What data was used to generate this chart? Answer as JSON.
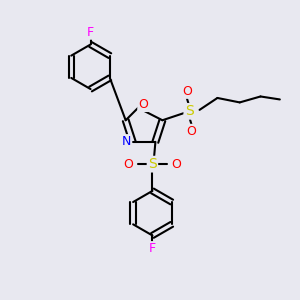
{
  "bg_color": "#e8e8f0",
  "bond_color": "#000000",
  "N_color": "#0000ff",
  "O_color": "#ff0000",
  "S_color": "#cccc00",
  "F_color": "#ff00ff",
  "line_width": 1.5,
  "figsize": [
    3.0,
    3.0
  ],
  "dpi": 100,
  "xlim": [
    0,
    10
  ],
  "ylim": [
    0,
    10
  ]
}
